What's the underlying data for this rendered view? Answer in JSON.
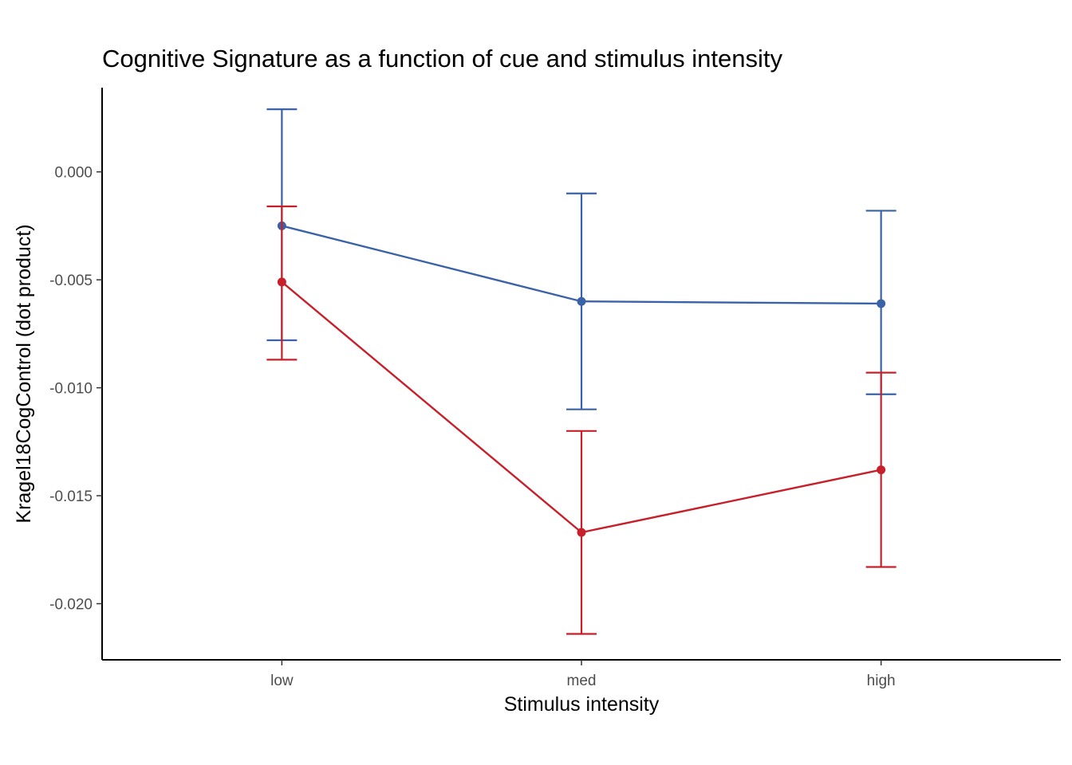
{
  "chart_data": {
    "type": "line",
    "title": "Cognitive Signature as a function of cue and stimulus intensity",
    "xlabel": "Stimulus intensity",
    "ylabel": "Kragel18CogControl  (dot product)",
    "categories": [
      "low",
      "med",
      "high"
    ],
    "yticks": [
      "0.000",
      "-0.005",
      "-0.010",
      "-0.015",
      "-0.020"
    ],
    "ytick_values": [
      0.0,
      -0.005,
      -0.01,
      -0.015,
      -0.02
    ],
    "ylim": [
      -0.0226,
      0.0039
    ],
    "grid": false,
    "legend": "none",
    "series": [
      {
        "color": "#3a62a8",
        "values": [
          -0.0025,
          -0.006,
          -0.0061
        ],
        "error_low": [
          -0.0078,
          -0.011,
          -0.0103
        ],
        "error_high": [
          0.0029,
          -0.001,
          -0.0018
        ]
      },
      {
        "color": "#c8202a",
        "values": [
          -0.0051,
          -0.0167,
          -0.0138
        ],
        "error_low": [
          -0.0087,
          -0.0214,
          -0.0183
        ],
        "error_high": [
          -0.0016,
          -0.012,
          -0.0093
        ]
      }
    ]
  }
}
